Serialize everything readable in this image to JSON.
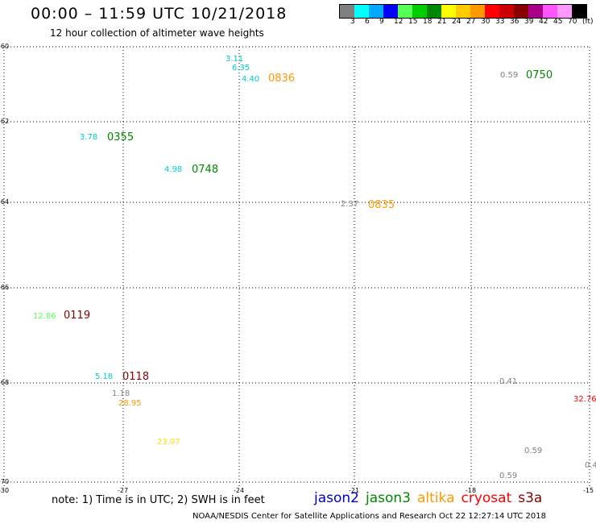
{
  "header": {
    "title": "00:00 – 11:59 UTC 10/21/2018",
    "subtitle": "12 hour collection of altimeter wave heights"
  },
  "color_scale": {
    "swatches": [
      "#808080",
      "#00ffff",
      "#00aaff",
      "#0000ff",
      "#55ff55",
      "#00cc00",
      "#008800",
      "#ffff00",
      "#ffcc00",
      "#ff9900",
      "#ff0000",
      "#cc0000",
      "#880000",
      "#aa0088",
      "#ff55ff",
      "#ff99ff",
      "#000000"
    ],
    "labels": [
      "3",
      "6",
      "9",
      "12",
      "15",
      "18",
      "21",
      "24",
      "27",
      "30",
      "33",
      "36",
      "39",
      "42",
      "45",
      "70",
      "(ft)"
    ]
  },
  "axes": {
    "y_labels": [
      "-60",
      "-62",
      "-64",
      "-66",
      "-68",
      "-70"
    ],
    "x_labels": [
      "-30",
      "-27",
      "-24",
      "-21",
      "-18",
      "-15"
    ]
  },
  "observations": [
    {
      "text": "3.11",
      "color": "#00cccc"
    },
    {
      "text": "6.35",
      "color": "#00cccc"
    },
    {
      "text": "4.40",
      "color": "#00cccc"
    },
    {
      "text": "0836",
      "color": "#ff9900"
    },
    {
      "text": "0.59",
      "color": "#808080"
    },
    {
      "text": "0750",
      "color": "#008800"
    },
    {
      "text": "3.78",
      "color": "#00cccc"
    },
    {
      "text": "0355",
      "color": "#008800"
    },
    {
      "text": "4.98",
      "color": "#00cccc"
    },
    {
      "text": "0748",
      "color": "#008800"
    },
    {
      "text": "2.37",
      "color": "#808080"
    },
    {
      "text": "0835",
      "color": "#ff9900"
    },
    {
      "text": "12.86",
      "color": "#55ff55"
    },
    {
      "text": "0119",
      "color": "#880000"
    },
    {
      "text": "5.18",
      "color": "#00cccc"
    },
    {
      "text": "0118",
      "color": "#880000"
    },
    {
      "text": "1.18",
      "color": "#808080"
    },
    {
      "text": "28.95",
      "color": "#ff9900"
    },
    {
      "text": "23.07",
      "color": "#ffdd00"
    },
    {
      "text": "0.41",
      "color": "#808080"
    },
    {
      "text": "32.76",
      "color": "#ff0000"
    },
    {
      "text": "0.59",
      "color": "#808080"
    },
    {
      "text": "0.59",
      "color": "#808080"
    },
    {
      "text": "0.4",
      "color": "#808080"
    }
  ],
  "footer": {
    "note": "note: 1) Time is in UTC; 2) SWH is in feet",
    "legend": [
      {
        "label": "jason2",
        "color": "#0000cc"
      },
      {
        "label": "jason3",
        "color": "#008800"
      },
      {
        "label": "altika",
        "color": "#ff9900"
      },
      {
        "label": "cryosat",
        "color": "#ff0000"
      },
      {
        "label": "s3a",
        "color": "#880000"
      }
    ],
    "credit": "NOAA/NESDIS Center for Satellite Applications and Research    Oct 22 12:27:14 UTC 2018"
  }
}
